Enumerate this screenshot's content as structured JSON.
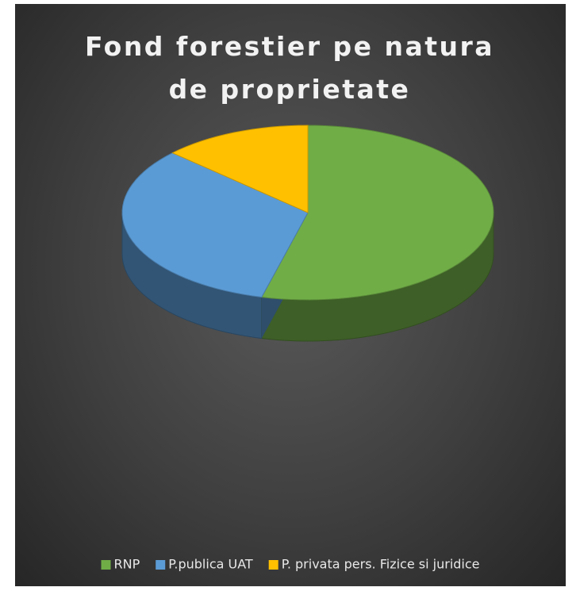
{
  "chart_data": {
    "type": "pie",
    "title": "Fond forestier pe natura de proprietate",
    "categories": [
      "RNP",
      "P.publica UAT",
      "P. privata  pers. Fizice si juridice"
    ],
    "values": [
      54,
      33,
      13
    ],
    "colors": [
      "#70ad47",
      "#5b9bd5",
      "#ffc000"
    ],
    "legend": "bottom"
  }
}
